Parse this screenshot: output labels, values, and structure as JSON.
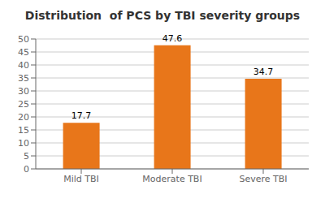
{
  "chart_data": {
    "type": "bar",
    "title": "Distribution  of PCS by TBI severity groups",
    "categories": [
      "Mild TBI",
      "Moderate TBI",
      "Severe TBI"
    ],
    "values": [
      17.7,
      47.6,
      34.7
    ],
    "color": "#E8761A",
    "ylim": [
      0,
      50
    ],
    "yticks": [
      0,
      5,
      10,
      15,
      20,
      25,
      30,
      35,
      40,
      45,
      50
    ],
    "grid": true,
    "data_labels": true
  }
}
